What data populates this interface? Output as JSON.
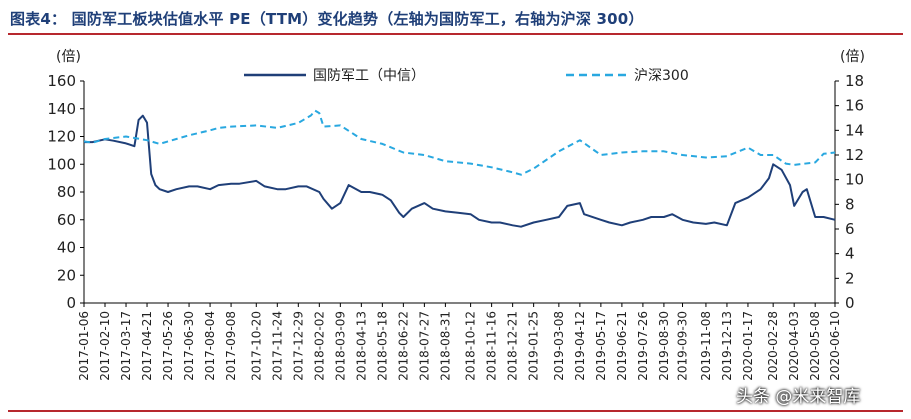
{
  "figure": {
    "title": "图表4：   国防军工板块估值水平 PE（TTM）变化趋势（左轴为国防军工，右轴为沪深 300）",
    "watermark": "头条 @米来智库"
  },
  "colors": {
    "title": "#1f3f78",
    "rule": "#b7282e",
    "defense": "#1f3f78",
    "hs300": "#29a8e0"
  },
  "chart_data": {
    "type": "line",
    "title": "国防军工板块估值水平 PE（TTM）变化趋势",
    "y_unit_left": "(倍)",
    "y_unit_right": "(倍)",
    "ylim_left": [
      0,
      160
    ],
    "yticks_left": [
      "0",
      "20",
      "40",
      "60",
      "80",
      "100",
      "120",
      "140",
      "160"
    ],
    "ylim_right": [
      0,
      18
    ],
    "yticks_right": [
      "0",
      "2",
      "4",
      "6",
      "8",
      "10",
      "12",
      "14",
      "16",
      "18"
    ],
    "xlim": [
      "2017-01-06",
      "2020-06-10"
    ],
    "x_tick_labels": [
      "2017-01-06",
      "2017-02-10",
      "2017-03-17",
      "2017-04-21",
      "2017-05-26",
      "2017-06-30",
      "2017-08-04",
      "2017-09-08",
      "2017-10-20",
      "2017-11-24",
      "2017-12-29",
      "2018-02-02",
      "2018-03-09",
      "2018-04-13",
      "2018-05-18",
      "2018-06-22",
      "2018-07-27",
      "2018-08-31",
      "2018-10-12",
      "2018-11-16",
      "2018-12-21",
      "2019-01-25",
      "2019-03-08",
      "2019-04-12",
      "2019-05-17",
      "2019-06-21",
      "2019-07-26",
      "2019-08-30",
      "2019-09-30",
      "2019-11-08",
      "2019-12-13",
      "2020-01-17",
      "2020-02-28",
      "2020-04-03",
      "2020-05-08",
      "2020-06-10"
    ],
    "legend_position": "top",
    "grid": false,
    "series": [
      {
        "name": "国防军工（中信）",
        "axis": "left",
        "style": "solid",
        "x": [
          "2017-01-06",
          "2017-01-20",
          "2017-02-10",
          "2017-02-24",
          "2017-03-17",
          "2017-03-31",
          "2017-04-07",
          "2017-04-14",
          "2017-04-21",
          "2017-04-28",
          "2017-05-05",
          "2017-05-12",
          "2017-05-26",
          "2017-06-09",
          "2017-06-30",
          "2017-07-14",
          "2017-08-04",
          "2017-08-18",
          "2017-09-08",
          "2017-09-22",
          "2017-10-20",
          "2017-11-03",
          "2017-11-24",
          "2017-12-08",
          "2017-12-29",
          "2018-01-12",
          "2018-02-02",
          "2018-02-09",
          "2018-02-23",
          "2018-03-09",
          "2018-03-23",
          "2018-04-13",
          "2018-04-27",
          "2018-05-18",
          "2018-06-01",
          "2018-06-15",
          "2018-06-22",
          "2018-07-06",
          "2018-07-27",
          "2018-08-10",
          "2018-08-31",
          "2018-09-21",
          "2018-10-12",
          "2018-10-26",
          "2018-11-16",
          "2018-11-30",
          "2018-12-21",
          "2019-01-04",
          "2019-01-25",
          "2019-02-15",
          "2019-03-08",
          "2019-03-22",
          "2019-04-12",
          "2019-04-19",
          "2019-05-17",
          "2019-05-31",
          "2019-06-21",
          "2019-07-05",
          "2019-07-26",
          "2019-08-09",
          "2019-08-30",
          "2019-09-13",
          "2019-09-30",
          "2019-10-18",
          "2019-11-08",
          "2019-11-22",
          "2019-12-13",
          "2019-12-27",
          "2020-01-17",
          "2020-02-07",
          "2020-02-21",
          "2020-02-28",
          "2020-03-13",
          "2020-03-27",
          "2020-04-03",
          "2020-04-17",
          "2020-04-24",
          "2020-05-08",
          "2020-05-22",
          "2020-06-10"
        ],
        "values": [
          116,
          116,
          118,
          117,
          115,
          113,
          132,
          135,
          130,
          93,
          85,
          82,
          80,
          82,
          84,
          84,
          82,
          85,
          86,
          86,
          88,
          84,
          82,
          82,
          84,
          84,
          80,
          75,
          68,
          72,
          85,
          80,
          80,
          78,
          74,
          65,
          62,
          68,
          72,
          68,
          66,
          65,
          64,
          60,
          58,
          58,
          56,
          55,
          58,
          60,
          62,
          70,
          72,
          64,
          60,
          58,
          56,
          58,
          60,
          62,
          62,
          64,
          60,
          58,
          57,
          58,
          56,
          72,
          76,
          82,
          90,
          100,
          96,
          85,
          70,
          80,
          82,
          62,
          62,
          60
        ]
      },
      {
        "name": "沪深300",
        "axis": "right",
        "style": "dashed",
        "x": [
          "2017-01-06",
          "2017-01-20",
          "2017-02-10",
          "2017-03-17",
          "2017-04-21",
          "2017-05-12",
          "2017-05-26",
          "2017-06-30",
          "2017-08-04",
          "2017-08-18",
          "2017-09-08",
          "2017-10-20",
          "2017-11-24",
          "2017-12-29",
          "2018-01-19",
          "2018-01-26",
          "2018-02-02",
          "2018-02-09",
          "2018-03-09",
          "2018-04-13",
          "2018-05-18",
          "2018-06-22",
          "2018-07-27",
          "2018-08-31",
          "2018-10-12",
          "2018-11-16",
          "2018-12-21",
          "2019-01-04",
          "2019-01-25",
          "2019-03-08",
          "2019-04-12",
          "2019-05-17",
          "2019-06-21",
          "2019-07-26",
          "2019-08-30",
          "2019-09-30",
          "2019-11-08",
          "2019-12-13",
          "2020-01-17",
          "2020-02-07",
          "2020-02-28",
          "2020-03-20",
          "2020-04-03",
          "2020-05-08",
          "2020-05-22",
          "2020-06-10"
        ],
        "values": [
          13.1,
          13.0,
          13.3,
          13.5,
          13.2,
          12.9,
          13.1,
          13.6,
          14.0,
          14.2,
          14.3,
          14.4,
          14.2,
          14.6,
          15.2,
          15.6,
          15.4,
          14.3,
          14.4,
          13.3,
          12.9,
          12.2,
          12.0,
          11.5,
          11.3,
          11.0,
          10.6,
          10.4,
          10.9,
          12.3,
          13.2,
          12.0,
          12.2,
          12.3,
          12.3,
          12.0,
          11.8,
          11.9,
          12.6,
          12.0,
          12.0,
          11.3,
          11.2,
          11.4,
          12.1,
          12.2
        ]
      }
    ]
  }
}
